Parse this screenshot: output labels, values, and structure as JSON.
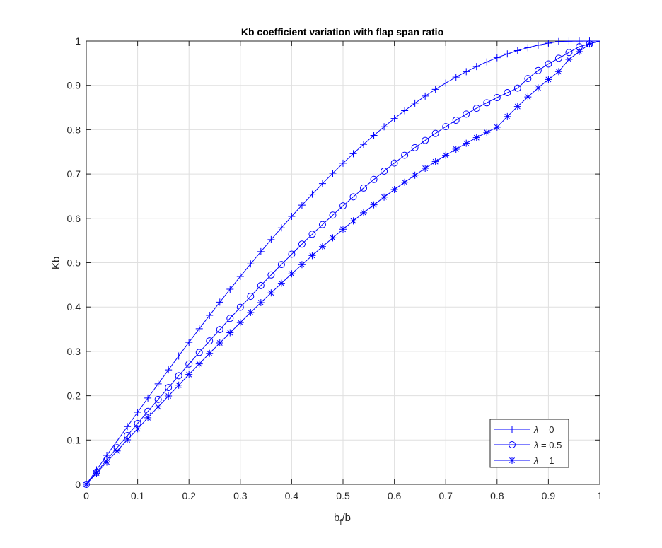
{
  "chart_data": {
    "type": "line",
    "title": "Kb coefficient variation with flap span ratio",
    "xlabel": {
      "main": "b",
      "sub": "f",
      "rest": "/b"
    },
    "ylabel": "Kb",
    "xlim": [
      0,
      1
    ],
    "ylim": [
      0,
      1
    ],
    "grid": true,
    "legend_position": "bottom-right",
    "x_ticks": [
      0,
      0.1,
      0.2,
      0.3,
      0.4,
      0.5,
      0.6,
      0.7,
      0.8,
      0.9,
      1
    ],
    "x_tick_labels": [
      "0",
      "0.1",
      "0.2",
      "0.3",
      "0.4",
      "0.5",
      "0.6",
      "0.7",
      "0.8",
      "0.9",
      "1"
    ],
    "y_ticks": [
      0,
      0.1,
      0.2,
      0.3,
      0.4,
      0.5,
      0.6,
      0.7,
      0.8,
      0.9,
      1
    ],
    "y_tick_labels": [
      "0",
      "0.1",
      "0.2",
      "0.3",
      "0.4",
      "0.5",
      "0.6",
      "0.7",
      "0.8",
      "0.9",
      "1"
    ],
    "x": [
      0,
      0.02,
      0.04,
      0.06,
      0.08,
      0.1,
      0.12,
      0.14,
      0.16,
      0.18,
      0.2,
      0.22,
      0.24,
      0.26,
      0.28,
      0.3,
      0.32,
      0.34,
      0.36,
      0.38,
      0.4,
      0.42,
      0.44,
      0.46,
      0.48,
      0.5,
      0.52,
      0.54,
      0.56,
      0.58,
      0.6,
      0.62,
      0.64,
      0.66,
      0.68,
      0.7,
      0.72,
      0.74,
      0.76,
      0.78,
      0.8,
      0.82,
      0.84,
      0.86,
      0.88,
      0.9,
      0.92,
      0.94,
      0.96,
      0.98
    ],
    "series": [
      {
        "name": "λ = 0",
        "legend_symbol": "λ",
        "legend_value": "= 0",
        "marker": "plus",
        "color": "#0000ff",
        "values": [
          0,
          0.0327,
          0.0654,
          0.098,
          0.1304,
          0.1627,
          0.1948,
          0.2266,
          0.2582,
          0.2895,
          0.3204,
          0.351,
          0.3811,
          0.4109,
          0.4401,
          0.4689,
          0.4972,
          0.5249,
          0.552,
          0.5786,
          0.6045,
          0.6298,
          0.6545,
          0.6784,
          0.7017,
          0.7242,
          0.7459,
          0.767,
          0.7871,
          0.8066,
          0.8252,
          0.8429,
          0.8598,
          0.8758,
          0.8909,
          0.9052,
          0.9185,
          0.9309,
          0.9423,
          0.9528,
          0.9624,
          0.9709,
          0.9785,
          0.9851,
          0.9907,
          0.9952,
          0.9988,
          0.9997,
          0.9998,
          0.9999
        ]
      },
      {
        "name": "λ = 0.5",
        "legend_symbol": "λ",
        "legend_value": "= 0.5",
        "marker": "circle",
        "color": "#0000ff",
        "values": [
          0,
          0.0276,
          0.0552,
          0.0827,
          0.1101,
          0.1374,
          0.1646,
          0.1916,
          0.2184,
          0.2451,
          0.2715,
          0.2976,
          0.3235,
          0.3491,
          0.3744,
          0.3994,
          0.4241,
          0.4484,
          0.4724,
          0.4959,
          0.5191,
          0.5418,
          0.5641,
          0.5859,
          0.6073,
          0.6282,
          0.6486,
          0.6684,
          0.6877,
          0.7065,
          0.7247,
          0.7423,
          0.7594,
          0.7758,
          0.7916,
          0.8068,
          0.8213,
          0.8351,
          0.8483,
          0.8607,
          0.8725,
          0.8835,
          0.8938,
          0.9153,
          0.9335,
          0.9482,
          0.9611,
          0.9741,
          0.987,
          0.9935
        ]
      },
      {
        "name": "λ = 1",
        "legend_symbol": "λ",
        "legend_value": "= 1",
        "marker": "asterisk",
        "color": "#0000ff",
        "values": [
          0,
          0.0252,
          0.0503,
          0.0754,
          0.1004,
          0.1254,
          0.1502,
          0.1749,
          0.1994,
          0.2237,
          0.2478,
          0.2718,
          0.2955,
          0.3189,
          0.3421,
          0.365,
          0.3876,
          0.4099,
          0.4319,
          0.4535,
          0.4748,
          0.4957,
          0.5162,
          0.5363,
          0.556,
          0.5753,
          0.5942,
          0.6126,
          0.6305,
          0.648,
          0.665,
          0.6815,
          0.6974,
          0.7129,
          0.7278,
          0.7422,
          0.756,
          0.7693,
          0.782,
          0.7941,
          0.8057,
          0.8296,
          0.8523,
          0.8739,
          0.8942,
          0.9132,
          0.931,
          0.9585,
          0.976,
          0.9935
        ]
      }
    ]
  }
}
